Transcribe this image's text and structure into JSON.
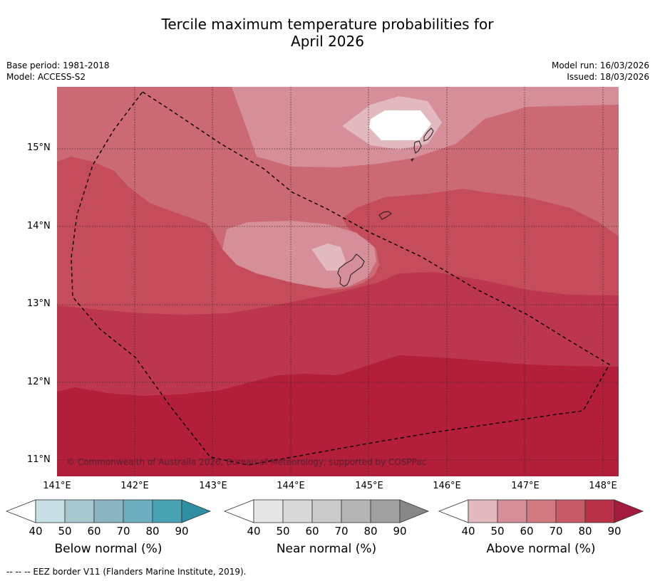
{
  "title_line1": "Tercile maximum temperature probabilities for",
  "title_line2": "April 2026",
  "meta_left": {
    "base_period": "Base period: 1981-2018",
    "model": "Model: ACCESS-S2"
  },
  "meta_right": {
    "model_run": "Model run: 16/03/2026",
    "issued": "Issued: 18/03/2026"
  },
  "latitudes": [
    "15°N",
    "14°N",
    "13°N",
    "12°N",
    "11°N"
  ],
  "longitudes": [
    "141°E",
    "142°E",
    "143°E",
    "144°E",
    "145°E",
    "146°E",
    "147°E",
    "148°E"
  ],
  "copyright": "© Commonwealth of Australia 2026, Bureau of Meteorology, supported by COSPPac",
  "colorbars": [
    {
      "title": "Below normal (%)",
      "ticks": [
        "40",
        "50",
        "60",
        "70",
        "80",
        "90"
      ],
      "colors": [
        "#ffffff",
        "#c6e0e6",
        "#a7c7ce",
        "#8bb6c1",
        "#6caebf",
        "#4aa2b5",
        "#2e8ea4"
      ]
    },
    {
      "title": "Near normal (%)",
      "ticks": [
        "40",
        "50",
        "60",
        "70",
        "80",
        "90"
      ],
      "colors": [
        "#ffffff",
        "#e6e6e6",
        "#d9d9d9",
        "#cbcbcb",
        "#b5b5b5",
        "#a0a0a0",
        "#878787"
      ]
    },
    {
      "title": "Above normal (%)",
      "ticks": [
        "40",
        "50",
        "60",
        "70",
        "80",
        "90"
      ],
      "colors": [
        "#ffffff",
        "#e1b9be",
        "#d68f98",
        "#d27a81",
        "#c85a67",
        "#b93248",
        "#a31a3c"
      ]
    }
  ],
  "footer": "--  --  -- EEZ border V11 (Flanders Marine Institute, 2019)."
}
